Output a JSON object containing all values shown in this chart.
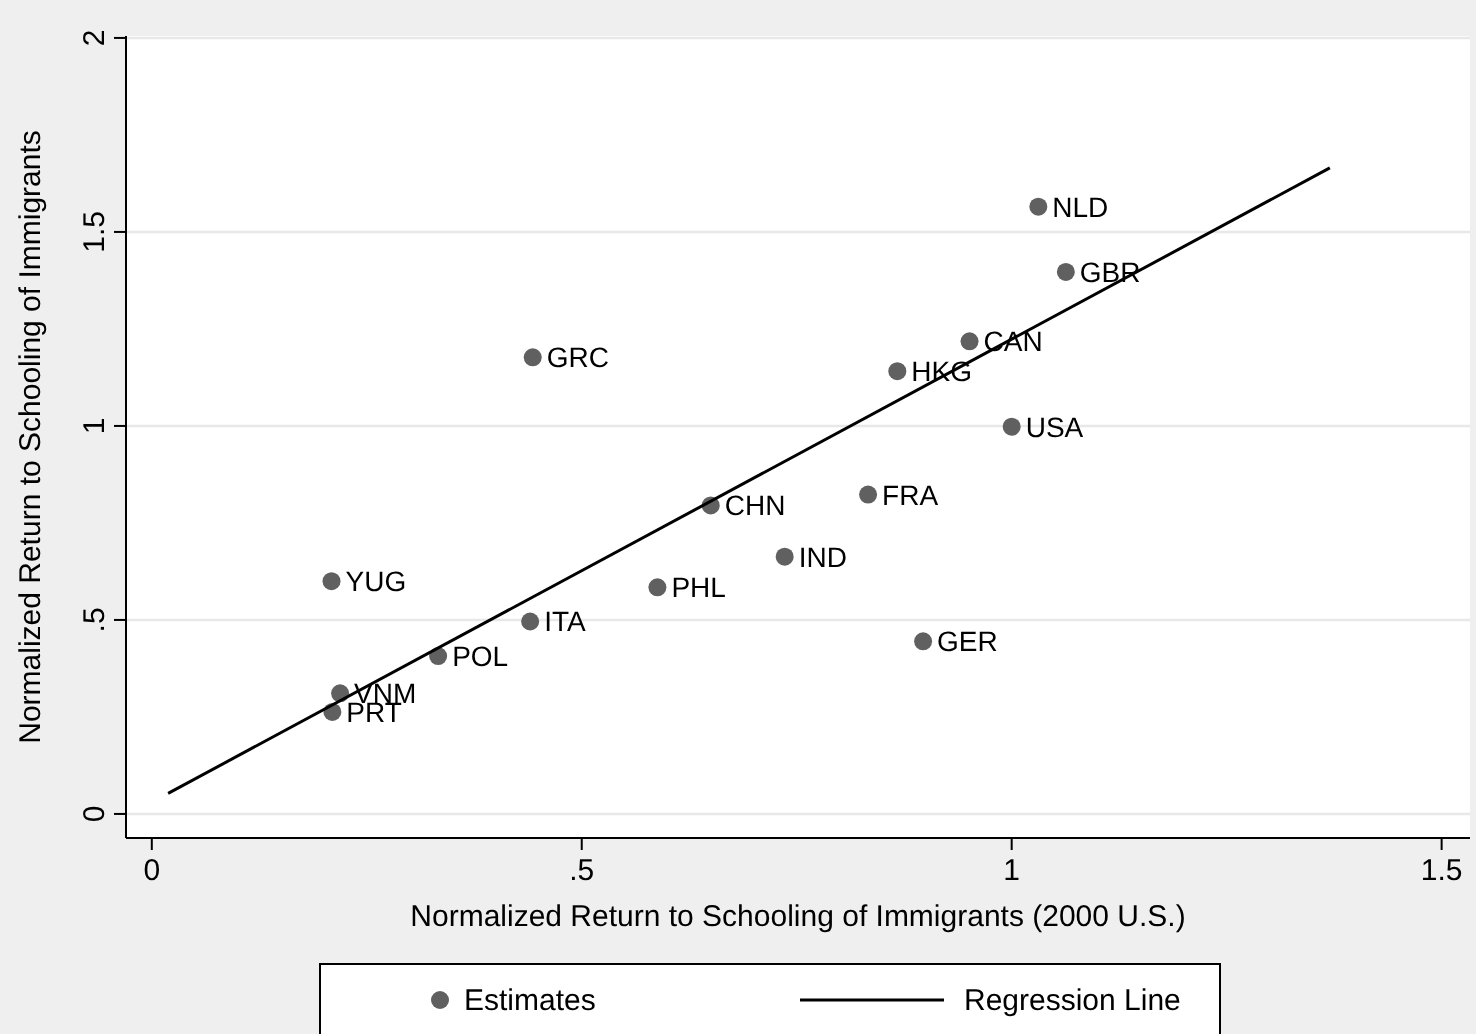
{
  "chart_data": {
    "type": "scatter",
    "xlabel": "Normalized Return to Schooling of Immigrants (2000 U.S.)",
    "ylabel": "Normalized Return to Schooling of Immigrants",
    "xlim": [
      -0.03,
      1.533
    ],
    "ylim": [
      -0.062,
      2.005
    ],
    "xticks": [
      0,
      {
        "value": 0.5,
        "label": ".5"
      },
      1,
      1.5
    ],
    "yticks": [
      0,
      {
        "value": 0.5,
        "label": ".5"
      },
      1,
      1.5,
      2
    ],
    "grid": "y",
    "legend": "bottom",
    "series": [
      {
        "name": "Estimates",
        "color": "#606060",
        "marker": "circle",
        "x": [
          1.031,
          1.063,
          0.951,
          0.867,
          1.0,
          0.833,
          0.897,
          0.443,
          0.65,
          0.736,
          0.588,
          0.209,
          0.44,
          0.333,
          0.219,
          0.21
        ],
        "values": [
          1.565,
          1.397,
          1.218,
          1.141,
          0.998,
          0.823,
          0.445,
          1.177,
          0.795,
          0.663,
          0.584,
          0.6,
          0.496,
          0.407,
          0.311,
          0.263
        ]
      },
      {
        "name": "Regression Line",
        "type": "line",
        "color": "#000000",
        "line_style": "solid",
        "marker": "none",
        "x": [
          0.019,
          1.37
        ],
        "values": [
          0.053,
          1.665
        ]
      }
    ],
    "annotations": [
      {
        "text": "NLD",
        "x": 1.031,
        "y": 1.565
      },
      {
        "text": "GBR",
        "x": 1.063,
        "y": 1.397
      },
      {
        "text": "CAN",
        "x": 0.951,
        "y": 1.218
      },
      {
        "text": "HKG",
        "x": 0.867,
        "y": 1.141
      },
      {
        "text": "USA",
        "x": 1.0,
        "y": 0.998
      },
      {
        "text": "FRA",
        "x": 0.833,
        "y": 0.823
      },
      {
        "text": "GER",
        "x": 0.897,
        "y": 0.445
      },
      {
        "text": "GRC",
        "x": 0.443,
        "y": 1.177
      },
      {
        "text": "CHN",
        "x": 0.65,
        "y": 0.795
      },
      {
        "text": "IND",
        "x": 0.736,
        "y": 0.663
      },
      {
        "text": "PHL",
        "x": 0.588,
        "y": 0.584
      },
      {
        "text": "YUG",
        "x": 0.209,
        "y": 0.6
      },
      {
        "text": "ITA",
        "x": 0.44,
        "y": 0.496
      },
      {
        "text": "POL",
        "x": 0.333,
        "y": 0.407
      },
      {
        "text": "VNM",
        "x": 0.219,
        "y": 0.311
      },
      {
        "text": "PRT",
        "x": 0.21,
        "y": 0.263
      }
    ]
  }
}
